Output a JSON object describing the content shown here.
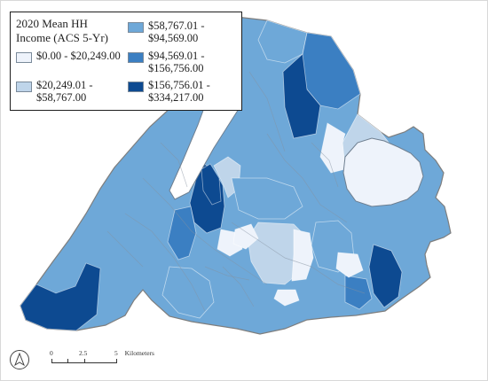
{
  "legend": {
    "title": "2020 Mean HH Income (ACS 5-Yr)",
    "classes": [
      {
        "label": "$0.00 - $20,249.00",
        "color": "#eef3fb"
      },
      {
        "label": "$20,249.01 - $58,767.00",
        "color": "#bfd5ea"
      },
      {
        "label": "$58,767.01 - $94,569.00",
        "color": "#6ea8d8"
      },
      {
        "label": "$94,569.01 - $156,756.00",
        "color": "#3b7fc2"
      },
      {
        "label": "$156,756.01 - $334,217.00",
        "color": "#0d4a91"
      }
    ]
  },
  "map": {
    "boundary_color": "#7e7e7e",
    "region_classes": [
      2,
      3,
      4,
      1,
      0,
      4,
      1,
      3,
      2,
      0,
      1,
      2,
      4,
      3,
      2
    ]
  },
  "scale": {
    "ticks": [
      "0",
      "2.5",
      "5"
    ],
    "unit": "Kilometers",
    "north_icon": "north-arrow-icon"
  }
}
